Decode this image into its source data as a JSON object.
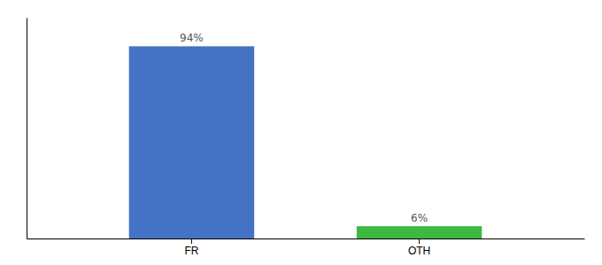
{
  "chart_data": {
    "type": "bar",
    "categories": [
      "FR",
      "OTH"
    ],
    "values": [
      94,
      6
    ],
    "value_labels": [
      "94%",
      "6%"
    ],
    "colors": [
      "#4472c4",
      "#3cb843"
    ],
    "ylim": [
      0,
      108
    ],
    "data_labels": true,
    "tick_labels": "x",
    "grid": false
  }
}
